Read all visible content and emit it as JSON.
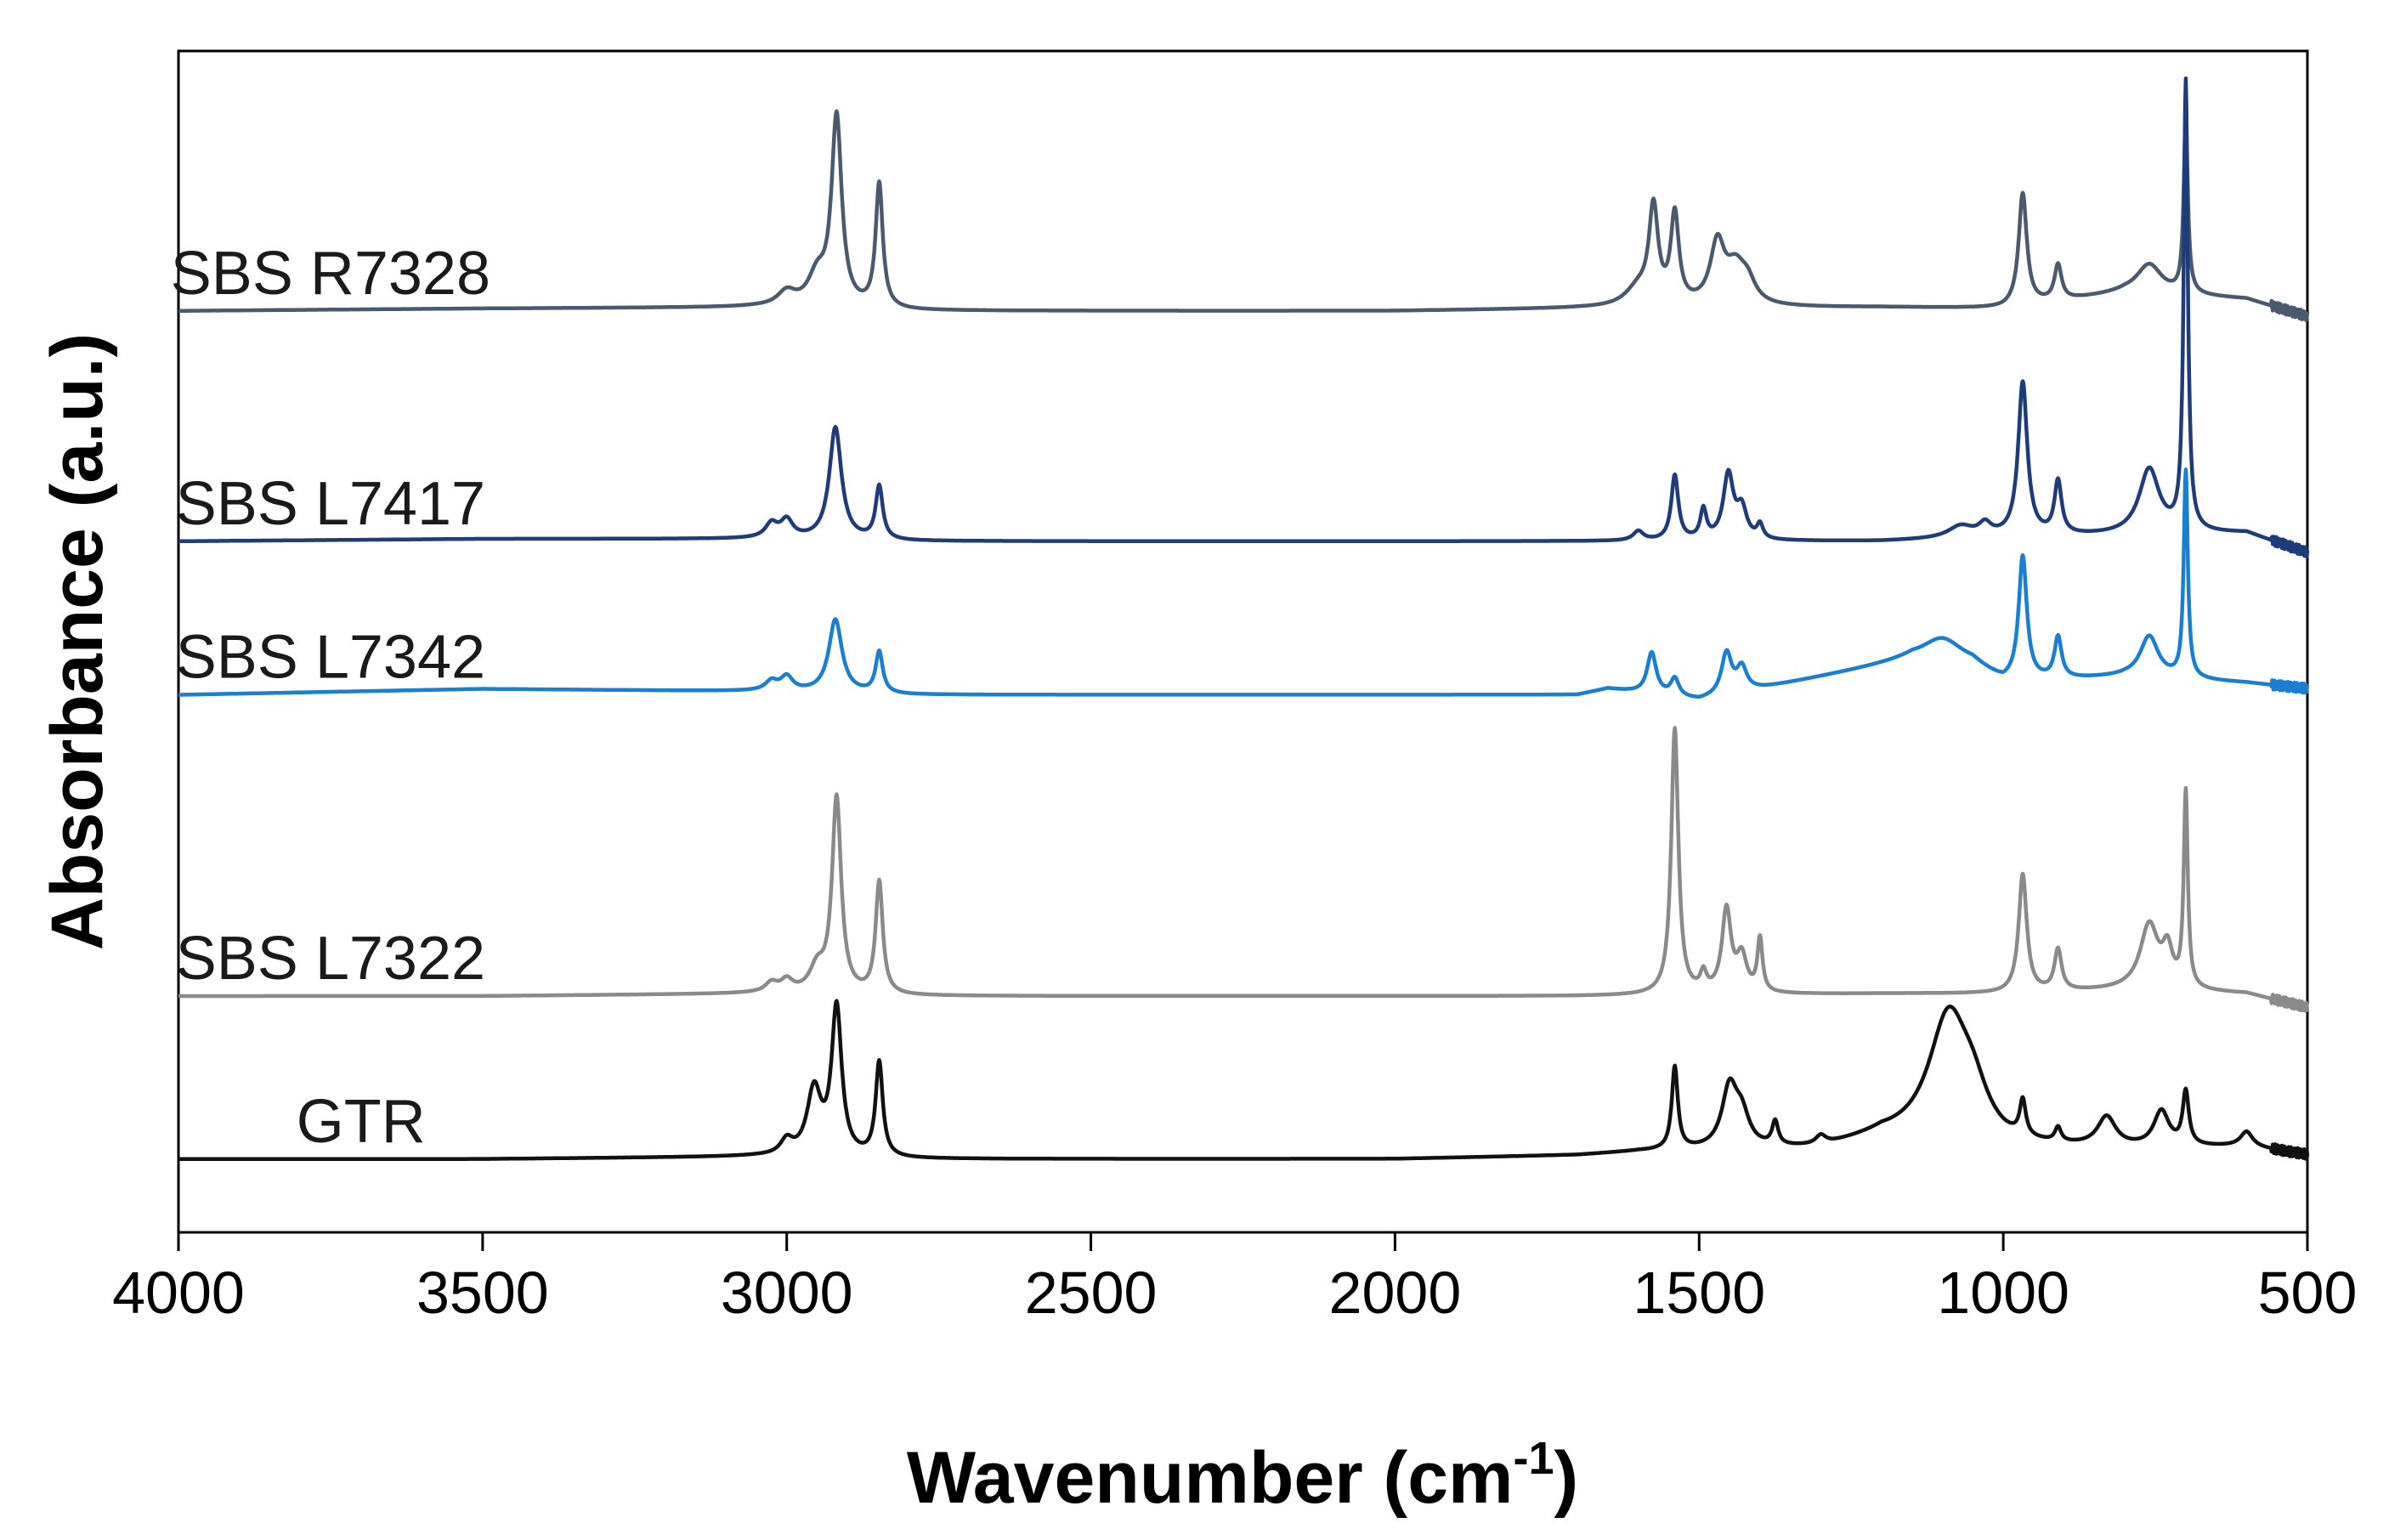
{
  "chart_data": {
    "type": "line",
    "title": "",
    "xlabel": "Wavenumber (cm",
    "xlabel_sup": "-1",
    "xlabel_end": ")",
    "ylabel": "Absorbance (a.u.)",
    "x_reversed": true,
    "xlim": [
      4000,
      500
    ],
    "ylim": [
      0,
      10
    ],
    "grid": false,
    "legend": "inline labels at left of each trace",
    "y_ticks_shown": false,
    "x_ticks": [
      {
        "value": 4000,
        "label": "4000"
      },
      {
        "value": 3500,
        "label": "3500"
      },
      {
        "value": 3000,
        "label": "3000"
      },
      {
        "value": 2500,
        "label": "2500"
      },
      {
        "value": 2000,
        "label": "2000"
      },
      {
        "value": 1500,
        "label": "1500"
      },
      {
        "value": 1000,
        "label": "1000"
      },
      {
        "value": 500,
        "label": "500"
      }
    ],
    "series": [
      {
        "name": "SBS R7328",
        "color": "#4a5a6e",
        "label_at": 3750,
        "baseline": 7.8,
        "baseline_points": [
          [
            4000,
            7.8
          ],
          [
            3500,
            7.82
          ],
          [
            3050,
            7.83
          ],
          [
            2800,
            7.8
          ],
          [
            2000,
            7.8
          ],
          [
            1700,
            7.82
          ],
          [
            1200,
            7.83
          ],
          [
            1000,
            7.82
          ],
          [
            800,
            7.95
          ],
          [
            600,
            7.9
          ],
          [
            500,
            7.75
          ]
        ],
        "peaks": [
          {
            "x": 3000,
            "h": 0.12,
            "w": 18
          },
          {
            "x": 2950,
            "h": 0.25,
            "w": 18
          },
          {
            "x": 2918,
            "h": 1.6,
            "w": 10
          },
          {
            "x": 2848,
            "h": 1.05,
            "w": 7
          },
          {
            "x": 1600,
            "h": 0.15,
            "w": 25
          },
          {
            "x": 1575,
            "h": 0.8,
            "w": 9
          },
          {
            "x": 1540,
            "h": 0.75,
            "w": 8
          },
          {
            "x": 1470,
            "h": 0.5,
            "w": 14
          },
          {
            "x": 1440,
            "h": 0.3,
            "w": 20
          },
          {
            "x": 1420,
            "h": 0.15,
            "w": 15
          },
          {
            "x": 968,
            "h": 0.95,
            "w": 8
          },
          {
            "x": 910,
            "h": 0.3,
            "w": 7
          },
          {
            "x": 760,
            "h": 0.25,
            "w": 25
          },
          {
            "x": 700,
            "h": 1.5,
            "w": 4
          }
        ]
      },
      {
        "name": "SBS L7417",
        "color": "#1f3c7a",
        "label_at": 3750,
        "baseline": 5.85,
        "baseline_points": [
          [
            4000,
            5.85
          ],
          [
            3500,
            5.87
          ],
          [
            3050,
            5.87
          ],
          [
            2800,
            5.85
          ],
          [
            2000,
            5.85
          ],
          [
            1700,
            5.85
          ],
          [
            1200,
            5.85
          ],
          [
            1000,
            5.88
          ],
          [
            800,
            5.9
          ],
          [
            600,
            5.92
          ],
          [
            500,
            5.75
          ]
        ],
        "peaks": [
          {
            "x": 3025,
            "h": 0.12,
            "w": 12
          },
          {
            "x": 3000,
            "h": 0.15,
            "w": 12
          },
          {
            "x": 2920,
            "h": 0.95,
            "w": 12
          },
          {
            "x": 2848,
            "h": 0.45,
            "w": 7
          },
          {
            "x": 1600,
            "h": 0.08,
            "w": 10
          },
          {
            "x": 1540,
            "h": 0.55,
            "w": 7
          },
          {
            "x": 1493,
            "h": 0.25,
            "w": 6
          },
          {
            "x": 1452,
            "h": 0.55,
            "w": 10
          },
          {
            "x": 1430,
            "h": 0.25,
            "w": 10
          },
          {
            "x": 1400,
            "h": 0.12,
            "w": 6
          },
          {
            "x": 1070,
            "h": 0.1,
            "w": 25
          },
          {
            "x": 1030,
            "h": 0.1,
            "w": 12
          },
          {
            "x": 968,
            "h": 1.3,
            "w": 9
          },
          {
            "x": 910,
            "h": 0.45,
            "w": 7
          },
          {
            "x": 760,
            "h": 0.55,
            "w": 20
          },
          {
            "x": 700,
            "h": 3.8,
            "w": 4
          }
        ]
      },
      {
        "name": "SBS L7342",
        "color": "#1a7fd0",
        "label_at": 3750,
        "baseline": 4.55,
        "baseline_points": [
          [
            4000,
            4.55
          ],
          [
            3500,
            4.6
          ],
          [
            3050,
            4.58
          ],
          [
            2800,
            4.55
          ],
          [
            2000,
            4.55
          ],
          [
            1700,
            4.55
          ],
          [
            1650,
            4.6
          ],
          [
            1500,
            4.5
          ],
          [
            1400,
            4.6
          ],
          [
            1150,
            4.85
          ],
          [
            1050,
            4.8
          ],
          [
            1000,
            4.65
          ],
          [
            800,
            4.7
          ],
          [
            600,
            4.65
          ],
          [
            500,
            4.6
          ]
        ],
        "peaks": [
          {
            "x": 3025,
            "h": 0.08,
            "w": 12
          },
          {
            "x": 3000,
            "h": 0.12,
            "w": 12
          },
          {
            "x": 2920,
            "h": 0.62,
            "w": 13
          },
          {
            "x": 2848,
            "h": 0.35,
            "w": 7
          },
          {
            "x": 1578,
            "h": 0.35,
            "w": 9
          },
          {
            "x": 1540,
            "h": 0.15,
            "w": 8
          },
          {
            "x": 1455,
            "h": 0.35,
            "w": 10
          },
          {
            "x": 1430,
            "h": 0.2,
            "w": 10
          },
          {
            "x": 1100,
            "h": 0.2,
            "w": 40
          },
          {
            "x": 968,
            "h": 1.05,
            "w": 8
          },
          {
            "x": 910,
            "h": 0.35,
            "w": 7
          },
          {
            "x": 760,
            "h": 0.35,
            "w": 18
          },
          {
            "x": 700,
            "h": 1.75,
            "w": 4
          }
        ]
      },
      {
        "name": "SBS L7322",
        "color": "#8a8a8a",
        "label_at": 3750,
        "baseline": 2.0,
        "baseline_points": [
          [
            4000,
            2.0
          ],
          [
            3500,
            2.0
          ],
          [
            3050,
            2.02
          ],
          [
            2800,
            2.0
          ],
          [
            2000,
            2.0
          ],
          [
            1700,
            2.0
          ],
          [
            1200,
            2.02
          ],
          [
            1000,
            2.02
          ],
          [
            800,
            2.05
          ],
          [
            600,
            2.02
          ],
          [
            500,
            1.9
          ]
        ],
        "peaks": [
          {
            "x": 3025,
            "h": 0.08,
            "w": 12
          },
          {
            "x": 3000,
            "h": 0.1,
            "w": 12
          },
          {
            "x": 2950,
            "h": 0.2,
            "w": 15
          },
          {
            "x": 2918,
            "h": 1.65,
            "w": 9
          },
          {
            "x": 2848,
            "h": 0.95,
            "w": 7
          },
          {
            "x": 1540,
            "h": 2.25,
            "w": 7
          },
          {
            "x": 1493,
            "h": 0.15,
            "w": 6
          },
          {
            "x": 1455,
            "h": 0.7,
            "w": 9
          },
          {
            "x": 1430,
            "h": 0.3,
            "w": 10
          },
          {
            "x": 1400,
            "h": 0.45,
            "w": 5
          },
          {
            "x": 968,
            "h": 1.0,
            "w": 8
          },
          {
            "x": 910,
            "h": 0.35,
            "w": 7
          },
          {
            "x": 760,
            "h": 0.55,
            "w": 18
          },
          {
            "x": 730,
            "h": 0.3,
            "w": 10
          },
          {
            "x": 700,
            "h": 1.65,
            "w": 4
          }
        ]
      },
      {
        "name": "GTR",
        "color": "#111111",
        "label_at": 3700,
        "baseline": 0.62,
        "baseline_points": [
          [
            4000,
            0.62
          ],
          [
            3500,
            0.62
          ],
          [
            3050,
            0.64
          ],
          [
            2800,
            0.62
          ],
          [
            2000,
            0.62
          ],
          [
            1700,
            0.65
          ],
          [
            1600,
            0.68
          ],
          [
            1300,
            0.7
          ],
          [
            1200,
            0.8
          ],
          [
            1000,
            0.7
          ],
          [
            800,
            0.7
          ],
          [
            600,
            0.72
          ],
          [
            500,
            0.65
          ]
        ],
        "peaks": [
          {
            "x": 3000,
            "h": 0.12,
            "w": 12
          },
          {
            "x": 2955,
            "h": 0.55,
            "w": 14
          },
          {
            "x": 2918,
            "h": 1.25,
            "w": 10
          },
          {
            "x": 2848,
            "h": 0.8,
            "w": 7
          },
          {
            "x": 1540,
            "h": 0.7,
            "w": 6
          },
          {
            "x": 1450,
            "h": 0.5,
            "w": 15
          },
          {
            "x": 1430,
            "h": 0.25,
            "w": 15
          },
          {
            "x": 1375,
            "h": 0.2,
            "w": 6
          },
          {
            "x": 1300,
            "h": 0.08,
            "w": 10
          },
          {
            "x": 1090,
            "h": 1.05,
            "w": 40
          },
          {
            "x": 1050,
            "h": 0.3,
            "w": 30
          },
          {
            "x": 968,
            "h": 0.3,
            "w": 6
          },
          {
            "x": 910,
            "h": 0.12,
            "w": 6
          },
          {
            "x": 830,
            "h": 0.25,
            "w": 18
          },
          {
            "x": 740,
            "h": 0.3,
            "w": 15
          },
          {
            "x": 700,
            "h": 0.45,
            "w": 6
          },
          {
            "x": 600,
            "h": 0.12,
            "w": 12
          }
        ]
      }
    ]
  }
}
